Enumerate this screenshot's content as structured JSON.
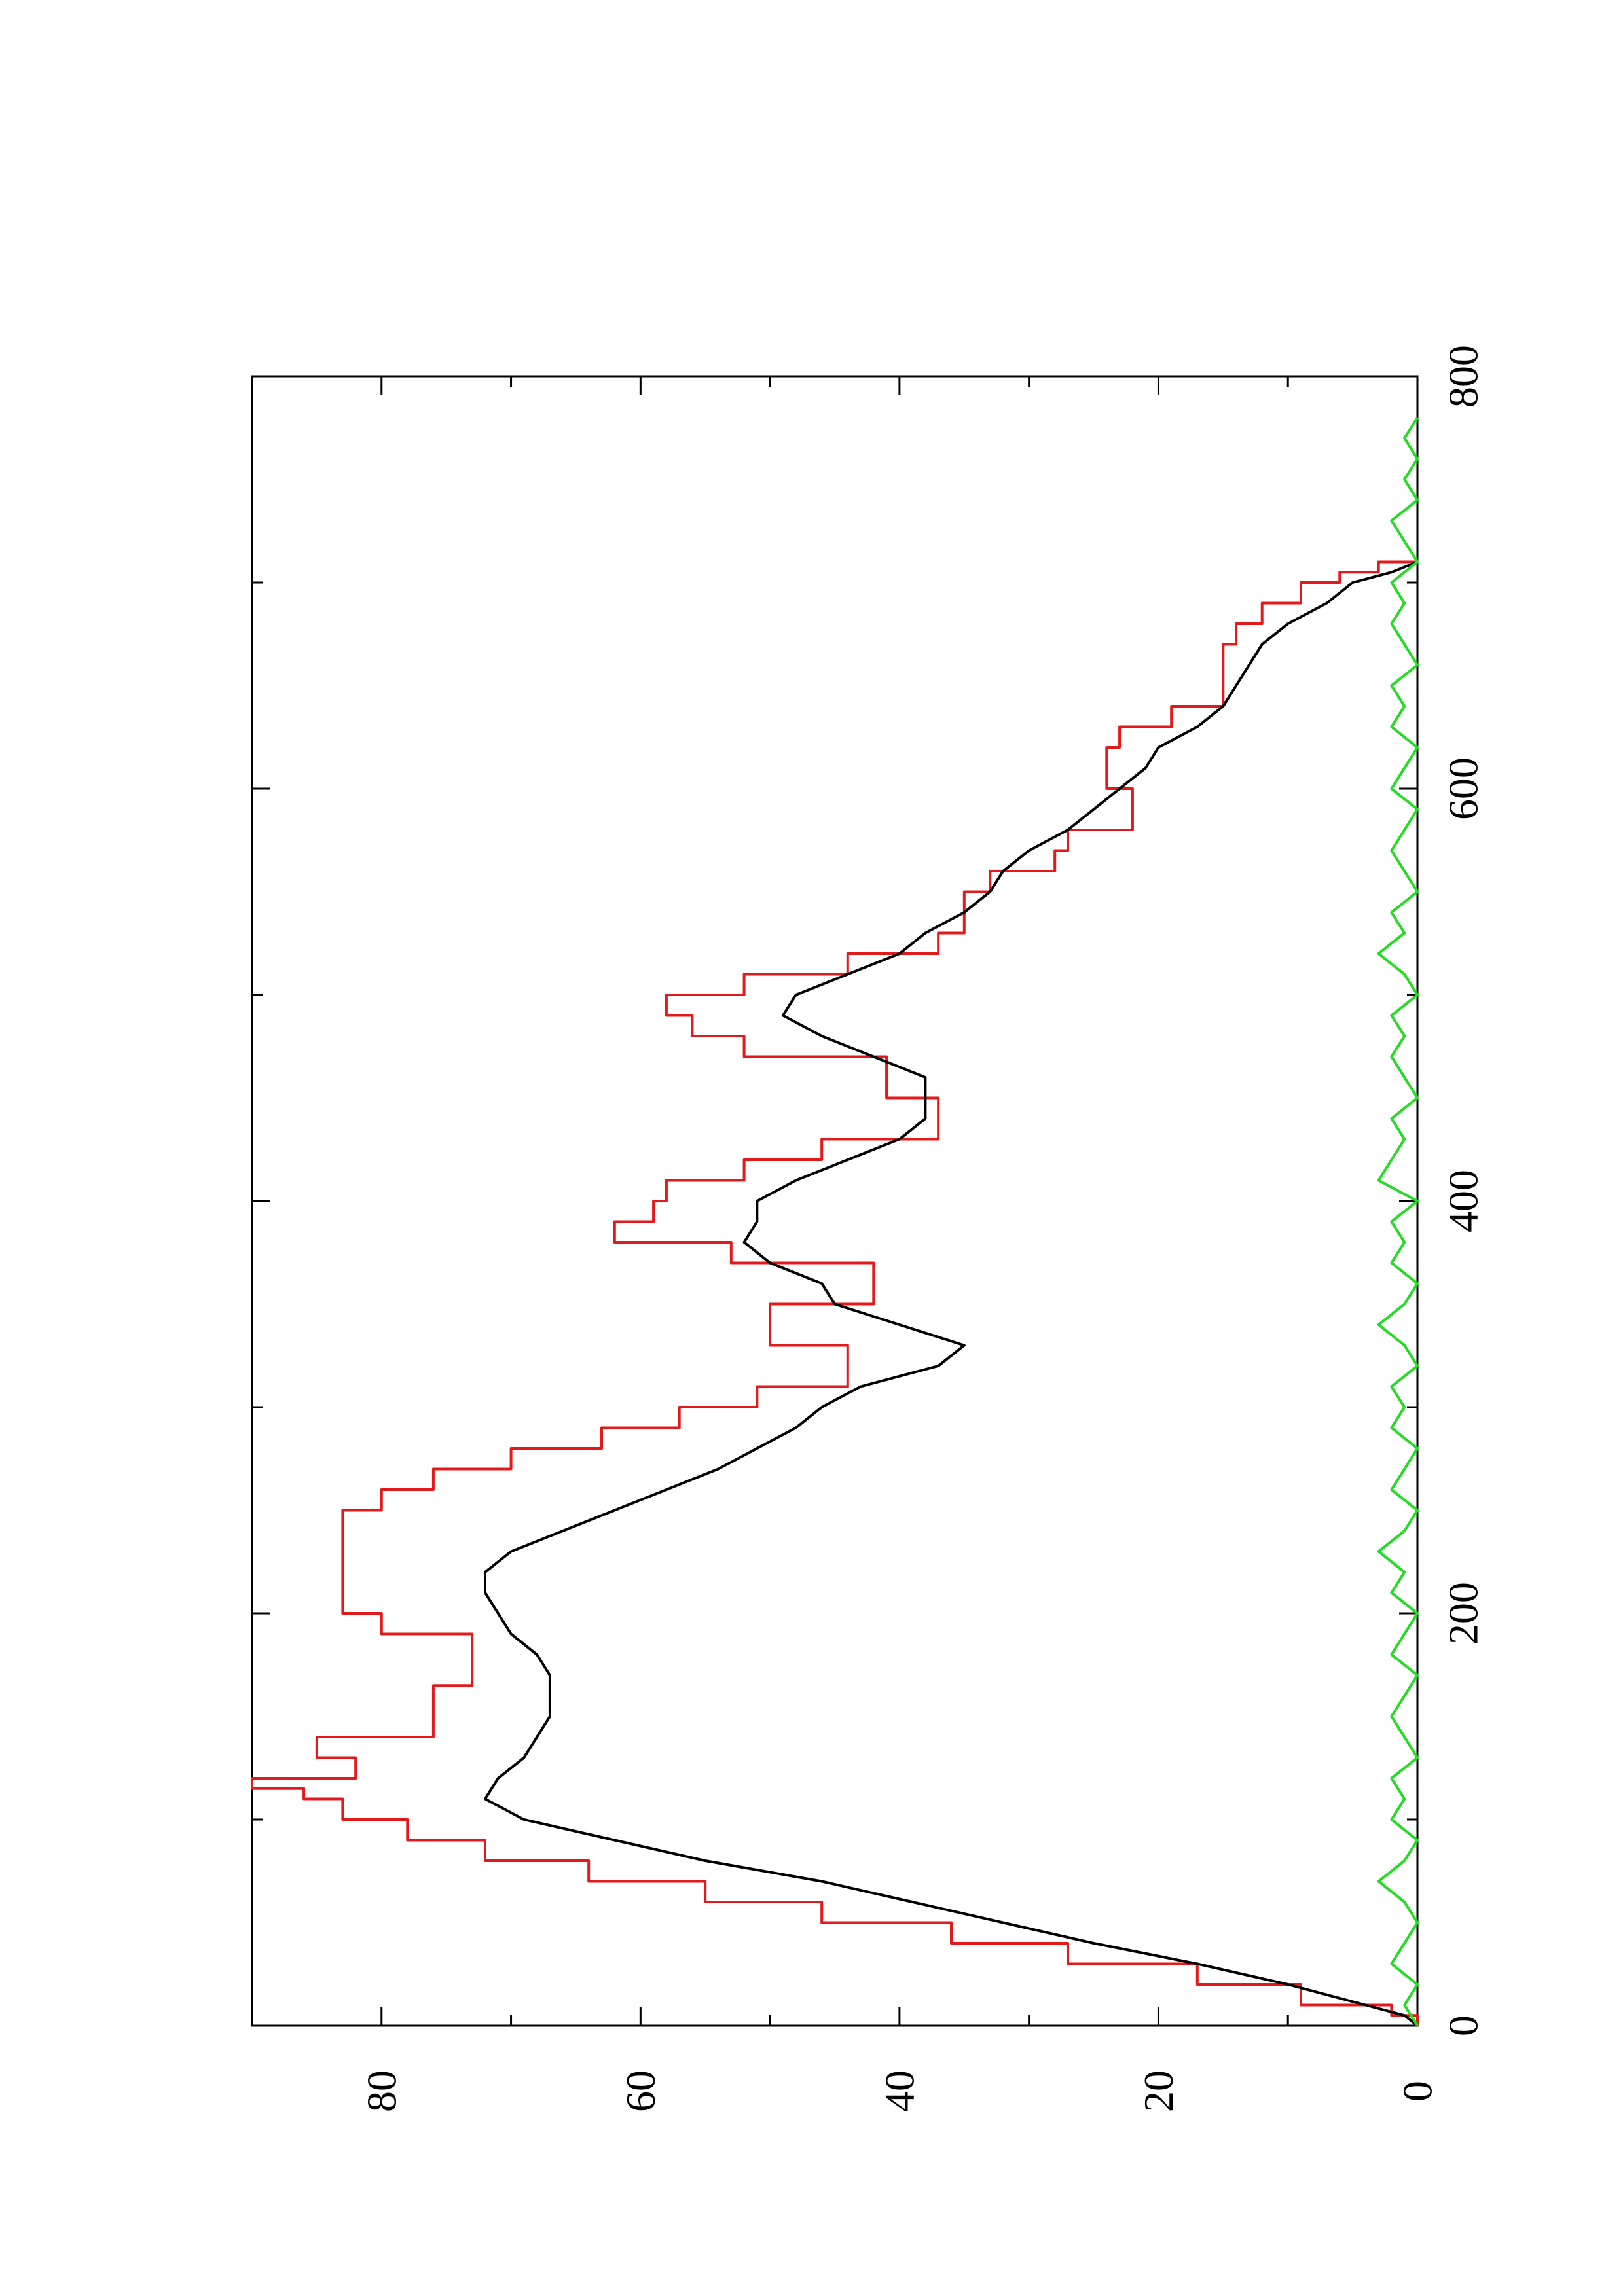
{
  "chart_data": {
    "type": "line",
    "orientation": "rotated-90-ccw",
    "xlim": [
      0,
      800
    ],
    "ylim": [
      0,
      90
    ],
    "x_ticks": [
      0,
      200,
      400,
      600,
      800
    ],
    "x_minor_ticks": [
      100,
      300,
      500,
      700
    ],
    "y_ticks": [
      0,
      20,
      40,
      60,
      80
    ],
    "y_minor_ticks": [
      10,
      30,
      50,
      70
    ],
    "x_tick_labels": [
      "0",
      "200",
      "400",
      "600",
      "800"
    ],
    "y_tick_labels": [
      "0",
      "20",
      "40",
      "60",
      "80"
    ],
    "grid": false,
    "legend": "none",
    "series": [
      {
        "color": "#e31a1c",
        "style": "step",
        "points": [
          [
            0,
            0
          ],
          [
            5,
            2
          ],
          [
            10,
            9
          ],
          [
            20,
            17
          ],
          [
            30,
            27
          ],
          [
            40,
            36
          ],
          [
            50,
            46
          ],
          [
            60,
            55
          ],
          [
            70,
            64
          ],
          [
            80,
            72
          ],
          [
            90,
            78
          ],
          [
            100,
            83
          ],
          [
            110,
            86
          ],
          [
            115,
            90
          ],
          [
            120,
            82
          ],
          [
            130,
            85
          ],
          [
            140,
            76
          ],
          [
            150,
            76
          ],
          [
            160,
            76
          ],
          [
            165,
            73
          ],
          [
            170,
            73
          ],
          [
            180,
            73
          ],
          [
            185,
            73
          ],
          [
            190,
            80
          ],
          [
            200,
            83
          ],
          [
            210,
            83
          ],
          [
            220,
            83
          ],
          [
            230,
            83
          ],
          [
            240,
            83
          ],
          [
            250,
            80
          ],
          [
            260,
            76
          ],
          [
            270,
            70
          ],
          [
            280,
            63
          ],
          [
            290,
            57
          ],
          [
            300,
            51
          ],
          [
            310,
            44
          ],
          [
            320,
            44
          ],
          [
            330,
            50
          ],
          [
            340,
            50
          ],
          [
            350,
            42
          ],
          [
            360,
            42
          ],
          [
            370,
            53
          ],
          [
            380,
            62
          ],
          [
            390,
            59
          ],
          [
            400,
            58
          ],
          [
            410,
            52
          ],
          [
            420,
            46
          ],
          [
            430,
            37
          ],
          [
            440,
            37
          ],
          [
            450,
            41
          ],
          [
            460,
            41
          ],
          [
            470,
            52
          ],
          [
            480,
            56
          ],
          [
            490,
            58
          ],
          [
            500,
            52
          ],
          [
            510,
            44
          ],
          [
            520,
            37
          ],
          [
            530,
            35
          ],
          [
            540,
            35
          ],
          [
            550,
            33
          ],
          [
            560,
            28
          ],
          [
            570,
            27
          ],
          [
            580,
            22
          ],
          [
            590,
            22
          ],
          [
            600,
            24
          ],
          [
            610,
            24
          ],
          [
            620,
            23
          ],
          [
            630,
            19
          ],
          [
            640,
            15
          ],
          [
            650,
            15
          ],
          [
            660,
            15
          ],
          [
            670,
            14
          ],
          [
            680,
            12
          ],
          [
            690,
            9
          ],
          [
            700,
            6
          ],
          [
            705,
            3
          ],
          [
            710,
            0
          ]
        ]
      },
      {
        "color": "#000000",
        "style": "line",
        "points": [
          [
            0,
            0
          ],
          [
            5,
            1
          ],
          [
            10,
            4
          ],
          [
            20,
            10
          ],
          [
            30,
            17
          ],
          [
            40,
            25
          ],
          [
            50,
            32
          ],
          [
            60,
            39
          ],
          [
            70,
            46
          ],
          [
            80,
            55
          ],
          [
            90,
            62
          ],
          [
            100,
            69
          ],
          [
            110,
            72
          ],
          [
            120,
            71
          ],
          [
            130,
            69
          ],
          [
            140,
            68
          ],
          [
            150,
            67
          ],
          [
            160,
            67
          ],
          [
            170,
            67
          ],
          [
            180,
            68
          ],
          [
            190,
            70
          ],
          [
            200,
            71
          ],
          [
            210,
            72
          ],
          [
            220,
            72
          ],
          [
            230,
            70
          ],
          [
            240,
            66
          ],
          [
            250,
            62
          ],
          [
            260,
            58
          ],
          [
            270,
            54
          ],
          [
            280,
            51
          ],
          [
            290,
            48
          ],
          [
            300,
            46
          ],
          [
            310,
            43
          ],
          [
            320,
            37
          ],
          [
            330,
            35
          ],
          [
            340,
            40
          ],
          [
            350,
            45
          ],
          [
            360,
            46
          ],
          [
            370,
            50
          ],
          [
            380,
            52
          ],
          [
            390,
            51
          ],
          [
            400,
            51
          ],
          [
            410,
            48
          ],
          [
            420,
            44
          ],
          [
            430,
            40
          ],
          [
            440,
            38
          ],
          [
            450,
            38
          ],
          [
            460,
            38
          ],
          [
            470,
            42
          ],
          [
            480,
            46
          ],
          [
            490,
            49
          ],
          [
            500,
            48
          ],
          [
            510,
            44
          ],
          [
            520,
            40
          ],
          [
            530,
            38
          ],
          [
            540,
            35
          ],
          [
            550,
            33
          ],
          [
            560,
            32
          ],
          [
            570,
            30
          ],
          [
            580,
            27
          ],
          [
            590,
            25
          ],
          [
            600,
            23
          ],
          [
            610,
            21
          ],
          [
            620,
            20
          ],
          [
            630,
            17
          ],
          [
            640,
            15
          ],
          [
            650,
            14
          ],
          [
            660,
            13
          ],
          [
            670,
            12
          ],
          [
            680,
            10
          ],
          [
            690,
            7
          ],
          [
            700,
            5
          ],
          [
            705,
            2
          ],
          [
            710,
            0
          ]
        ]
      },
      {
        "color": "#22dd22",
        "style": "noise",
        "points": [
          [
            0,
            0
          ],
          [
            10,
            1
          ],
          [
            20,
            0
          ],
          [
            30,
            2
          ],
          [
            40,
            1
          ],
          [
            50,
            0
          ],
          [
            60,
            1
          ],
          [
            70,
            3
          ],
          [
            80,
            1
          ],
          [
            90,
            0
          ],
          [
            100,
            2
          ],
          [
            110,
            1
          ],
          [
            120,
            2
          ],
          [
            130,
            0
          ],
          [
            140,
            1
          ],
          [
            150,
            2
          ],
          [
            160,
            1
          ],
          [
            170,
            0
          ],
          [
            180,
            2
          ],
          [
            190,
            1
          ],
          [
            200,
            0
          ],
          [
            210,
            2
          ],
          [
            220,
            1
          ],
          [
            230,
            3
          ],
          [
            240,
            1
          ],
          [
            250,
            0
          ],
          [
            260,
            2
          ],
          [
            270,
            1
          ],
          [
            280,
            0
          ],
          [
            290,
            2
          ],
          [
            300,
            1
          ],
          [
            310,
            2
          ],
          [
            320,
            0
          ],
          [
            330,
            1
          ],
          [
            340,
            3
          ],
          [
            350,
            1
          ],
          [
            360,
            0
          ],
          [
            370,
            2
          ],
          [
            380,
            1
          ],
          [
            390,
            2
          ],
          [
            400,
            0
          ],
          [
            410,
            3
          ],
          [
            420,
            2
          ],
          [
            430,
            1
          ],
          [
            440,
            2
          ],
          [
            450,
            0
          ],
          [
            460,
            1
          ],
          [
            470,
            2
          ],
          [
            480,
            1
          ],
          [
            490,
            2
          ],
          [
            500,
            0
          ],
          [
            510,
            1
          ],
          [
            520,
            3
          ],
          [
            530,
            1
          ],
          [
            540,
            2
          ],
          [
            550,
            0
          ],
          [
            560,
            1
          ],
          [
            570,
            2
          ],
          [
            580,
            1
          ],
          [
            590,
            0
          ],
          [
            600,
            2
          ],
          [
            610,
            1
          ],
          [
            620,
            0
          ],
          [
            630,
            2
          ],
          [
            640,
            1
          ],
          [
            650,
            2
          ],
          [
            660,
            0
          ],
          [
            670,
            1
          ],
          [
            680,
            2
          ],
          [
            690,
            1
          ],
          [
            700,
            2
          ],
          [
            710,
            0
          ],
          [
            720,
            1
          ],
          [
            730,
            2
          ],
          [
            740,
            0
          ],
          [
            750,
            1
          ],
          [
            760,
            0
          ],
          [
            770,
            1
          ],
          [
            780,
            0
          ]
        ]
      }
    ]
  }
}
